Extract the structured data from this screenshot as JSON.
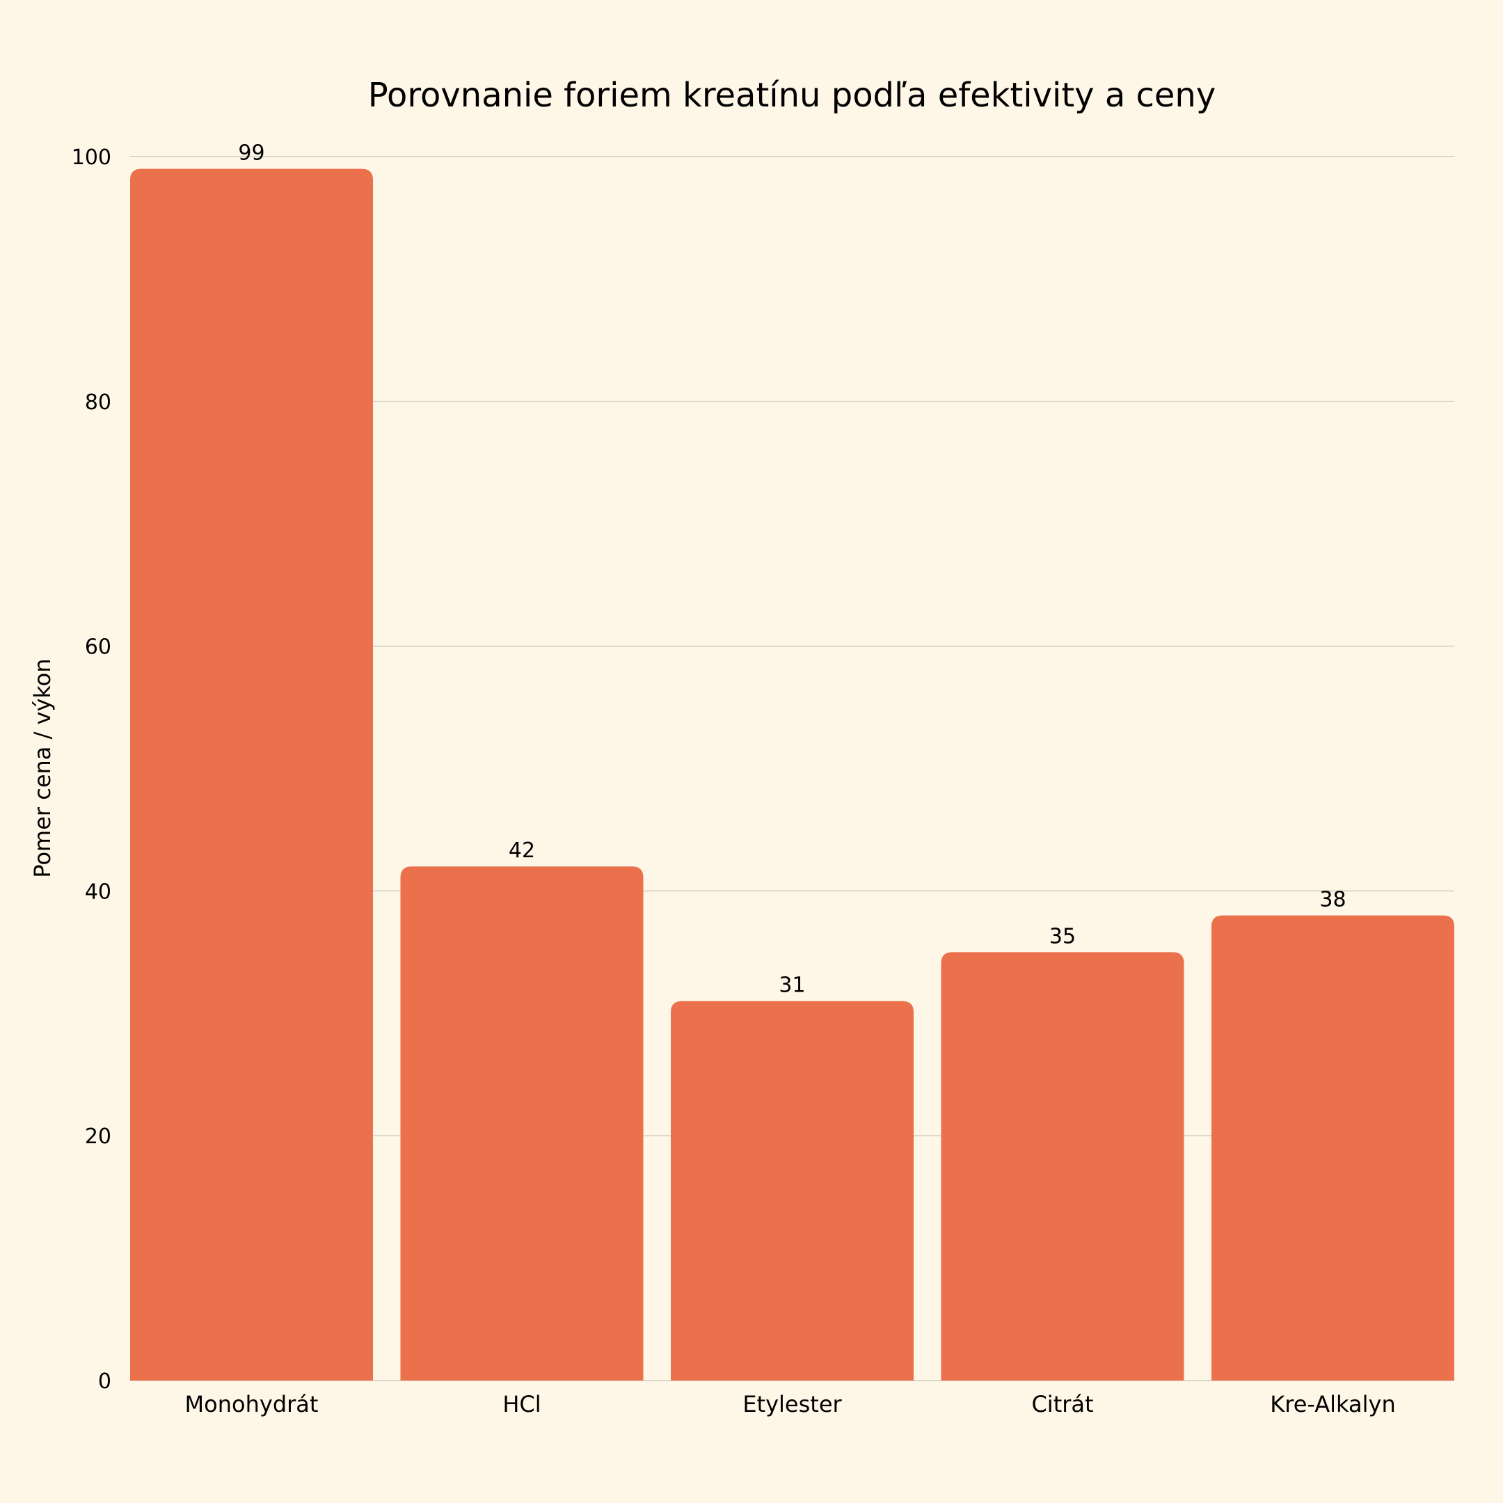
{
  "chart_data": {
    "type": "bar",
    "title": "Porovnanie foriem kreatínu podľa efektivity a ceny",
    "xlabel": "",
    "ylabel": "Pomer cena / výkon",
    "categories": [
      "Monohydrát",
      "HCl",
      "Etylester",
      "Citrát",
      "Kre-Alkalyn"
    ],
    "values": [
      99,
      42,
      31,
      35,
      38
    ],
    "ylim": [
      0,
      100
    ],
    "yticks": [
      0,
      20,
      40,
      60,
      80,
      100
    ],
    "grid": true,
    "legend": "none",
    "bar_color": "#EB714C",
    "background": "#FEF7E7"
  }
}
